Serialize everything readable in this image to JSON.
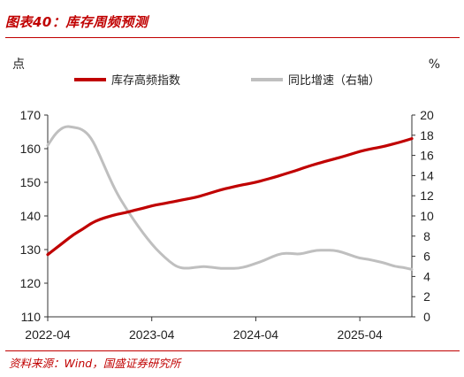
{
  "header": {
    "figure_title": "图表40：库存周频预测"
  },
  "footer": {
    "source": "资料来源：Wind，国盛证券研究所"
  },
  "chart_data": {
    "type": "line",
    "left_unit": "点",
    "right_unit": "%",
    "left_axis": {
      "min": 110,
      "max": 170,
      "ticks": [
        "110",
        "120",
        "130",
        "140",
        "150",
        "160",
        "170"
      ]
    },
    "right_axis": {
      "min": 0,
      "max": 20,
      "ticks": [
        "0",
        "2",
        "4",
        "6",
        "8",
        "10",
        "12",
        "14",
        "16",
        "18",
        "20"
      ]
    },
    "x_axis": {
      "start": "2022-04",
      "end": "2025-10",
      "ticks": [
        "2022-04",
        "2023-04",
        "2024-04",
        "2025-04"
      ]
    },
    "legend_position": "top",
    "grid": false,
    "colors": {
      "series_index": "#c00000",
      "series_yoy": "#bfbfbf"
    },
    "series": [
      {
        "name": "库存高频指数",
        "axis": "left",
        "points": [
          [
            "2022-04",
            128.5
          ],
          [
            "2022-05",
            130.5
          ],
          [
            "2022-06",
            132.5
          ],
          [
            "2022-07",
            134.5
          ],
          [
            "2022-08",
            136.0
          ],
          [
            "2022-09",
            137.8
          ],
          [
            "2022-10",
            139.0
          ],
          [
            "2022-11",
            139.8
          ],
          [
            "2022-12",
            140.5
          ],
          [
            "2023-01",
            141.0
          ],
          [
            "2023-02",
            141.7
          ],
          [
            "2023-03",
            142.3
          ],
          [
            "2023-04",
            143.0
          ],
          [
            "2023-05",
            143.5
          ],
          [
            "2023-06",
            144.0
          ],
          [
            "2023-07",
            144.5
          ],
          [
            "2023-08",
            145.0
          ],
          [
            "2023-09",
            145.5
          ],
          [
            "2023-10",
            146.2
          ],
          [
            "2023-11",
            147.0
          ],
          [
            "2023-12",
            147.8
          ],
          [
            "2024-01",
            148.4
          ],
          [
            "2024-02",
            149.0
          ],
          [
            "2024-03",
            149.5
          ],
          [
            "2024-04",
            150.0
          ],
          [
            "2024-05",
            150.7
          ],
          [
            "2024-06",
            151.4
          ],
          [
            "2024-07",
            152.2
          ],
          [
            "2024-08",
            153.0
          ],
          [
            "2024-09",
            153.8
          ],
          [
            "2024-10",
            154.7
          ],
          [
            "2024-11",
            155.5
          ],
          [
            "2024-12",
            156.2
          ],
          [
            "2025-01",
            156.9
          ],
          [
            "2025-02",
            157.6
          ],
          [
            "2025-03",
            158.4
          ],
          [
            "2025-04",
            159.2
          ],
          [
            "2025-05",
            159.8
          ],
          [
            "2025-06",
            160.3
          ],
          [
            "2025-07",
            160.8
          ],
          [
            "2025-08",
            161.5
          ],
          [
            "2025-09",
            162.2
          ],
          [
            "2025-10",
            163.0
          ]
        ]
      },
      {
        "name": "同比增速（右轴）",
        "axis": "right",
        "points": [
          [
            "2022-04",
            17.0
          ],
          [
            "2022-05",
            18.3
          ],
          [
            "2022-06",
            18.9
          ],
          [
            "2022-07",
            18.8
          ],
          [
            "2022-08",
            18.6
          ],
          [
            "2022-09",
            17.8
          ],
          [
            "2022-10",
            16.0
          ],
          [
            "2022-11",
            14.0
          ],
          [
            "2022-12",
            12.2
          ],
          [
            "2023-01",
            10.8
          ],
          [
            "2023-02",
            9.5
          ],
          [
            "2023-03",
            8.3
          ],
          [
            "2023-04",
            7.2
          ],
          [
            "2023-05",
            6.3
          ],
          [
            "2023-06",
            5.5
          ],
          [
            "2023-07",
            4.9
          ],
          [
            "2023-08",
            4.8
          ],
          [
            "2023-09",
            4.9
          ],
          [
            "2023-10",
            5.0
          ],
          [
            "2023-11",
            4.9
          ],
          [
            "2023-12",
            4.8
          ],
          [
            "2024-01",
            4.8
          ],
          [
            "2024-02",
            4.8
          ],
          [
            "2024-03",
            5.0
          ],
          [
            "2024-04",
            5.3
          ],
          [
            "2024-05",
            5.6
          ],
          [
            "2024-06",
            6.0
          ],
          [
            "2024-07",
            6.3
          ],
          [
            "2024-08",
            6.3
          ],
          [
            "2024-09",
            6.2
          ],
          [
            "2024-10",
            6.4
          ],
          [
            "2024-11",
            6.6
          ],
          [
            "2024-12",
            6.6
          ],
          [
            "2025-01",
            6.6
          ],
          [
            "2025-02",
            6.4
          ],
          [
            "2025-03",
            6.1
          ],
          [
            "2025-04",
            5.8
          ],
          [
            "2025-05",
            5.7
          ],
          [
            "2025-06",
            5.5
          ],
          [
            "2025-07",
            5.3
          ],
          [
            "2025-08",
            5.0
          ],
          [
            "2025-09",
            4.9
          ],
          [
            "2025-10",
            4.7
          ]
        ]
      }
    ]
  }
}
